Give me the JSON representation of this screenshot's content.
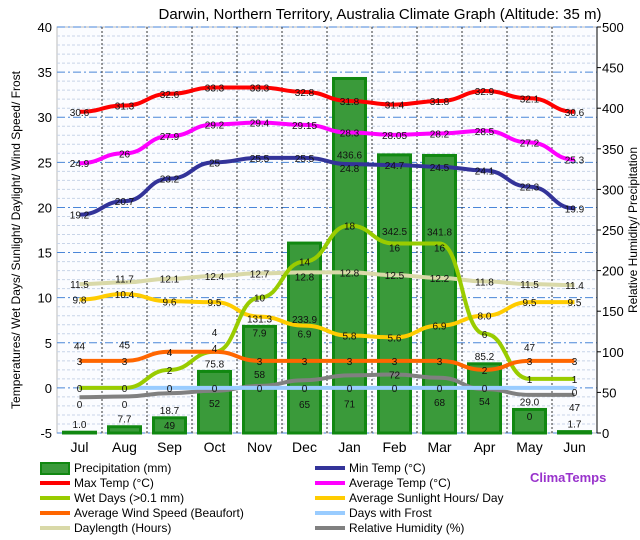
{
  "chart_data": {
    "type": "bar+line",
    "title": "Darwin, Northern Territory, Australia Climate Graph (Altitude: 35 m)",
    "ylabel_left": "Temperatures/ Wet Days/ Sunlight/ Daylight/ Wind Speed/ Frost",
    "ylabel_right": "Relative Humidity/ Precipitation",
    "ylim_left": [
      -5,
      40
    ],
    "ylim_right": [
      0,
      500
    ],
    "yticks_left": [
      -5,
      0,
      5,
      10,
      15,
      20,
      25,
      30,
      35,
      40
    ],
    "yticks_right": [
      0,
      50,
      100,
      150,
      200,
      250,
      300,
      350,
      400,
      450,
      500
    ],
    "categories": [
      "Jul",
      "Aug",
      "Sep",
      "Oct",
      "Nov",
      "Dec",
      "Jan",
      "Feb",
      "Mar",
      "Apr",
      "May",
      "Jun"
    ],
    "grid": true,
    "watermark": "ClimaTemps",
    "series": [
      {
        "name": "Precipitation (mm)",
        "kind": "bar",
        "axis": "right",
        "color": "#3a9a3a",
        "values": [
          1.0,
          7.7,
          18.7,
          75.8,
          131.3,
          233.9,
          436.6,
          342.5,
          341.8,
          85.2,
          29.0,
          1.7
        ]
      },
      {
        "name": "Min Temp (°C)",
        "axis": "left",
        "color": "#333399",
        "values": [
          19.2,
          20.7,
          23.2,
          25,
          25.5,
          25.5,
          24.8,
          24.7,
          24.5,
          24.1,
          22.3,
          19.9
        ]
      },
      {
        "name": "Max Temp (°C)",
        "axis": "left",
        "color": "#ff0000",
        "values": [
          30.6,
          31.3,
          32.6,
          33.3,
          33.3,
          32.8,
          31.8,
          31.4,
          31.8,
          32.9,
          32.1,
          30.6
        ]
      },
      {
        "name": "Average Temp (°C)",
        "axis": "left",
        "color": "#ff00ff",
        "values": [
          24.9,
          26,
          27.9,
          29.2,
          29.4,
          29.15,
          28.3,
          28.05,
          28.2,
          28.5,
          27.2,
          25.3
        ]
      },
      {
        "name": "Wet Days (>0.1 mm)",
        "axis": "left",
        "color": "#99cc00",
        "values": [
          0,
          0,
          2,
          4,
          10,
          14,
          18,
          16,
          16,
          6,
          1,
          1
        ]
      },
      {
        "name": "Average Sunlight Hours/ Day",
        "axis": "left",
        "color": "#ffcc00",
        "values": [
          9.8,
          10.4,
          9.6,
          9.5,
          7.9,
          6.9,
          5.8,
          5.6,
          6.9,
          8.0,
          9.5,
          9.5
        ]
      },
      {
        "name": "Average Wind Speed (Beaufort)",
        "axis": "left",
        "color": "#ff6600",
        "values": [
          3,
          3,
          4,
          4,
          3,
          3,
          3,
          3,
          3,
          2,
          3,
          3
        ]
      },
      {
        "name": "Days with Frost",
        "axis": "left",
        "color": "#99ccff",
        "values": [
          0,
          0,
          0,
          0,
          0,
          0,
          0,
          0,
          0,
          0,
          0,
          0
        ]
      },
      {
        "name": "Daylength (Hours)",
        "axis": "left",
        "color": "#d9d9a8",
        "values": [
          11.5,
          11.7,
          12.1,
          12.4,
          12.7,
          12.8,
          12.8,
          12.5,
          12.2,
          11.8,
          11.5,
          11.4
        ]
      },
      {
        "name": "Relative Humidity (%)",
        "axis": "right",
        "color": "#808080",
        "values": [
          44,
          45,
          49,
          52,
          58,
          65,
          71,
          72,
          68,
          54,
          47,
          47
        ]
      }
    ]
  }
}
